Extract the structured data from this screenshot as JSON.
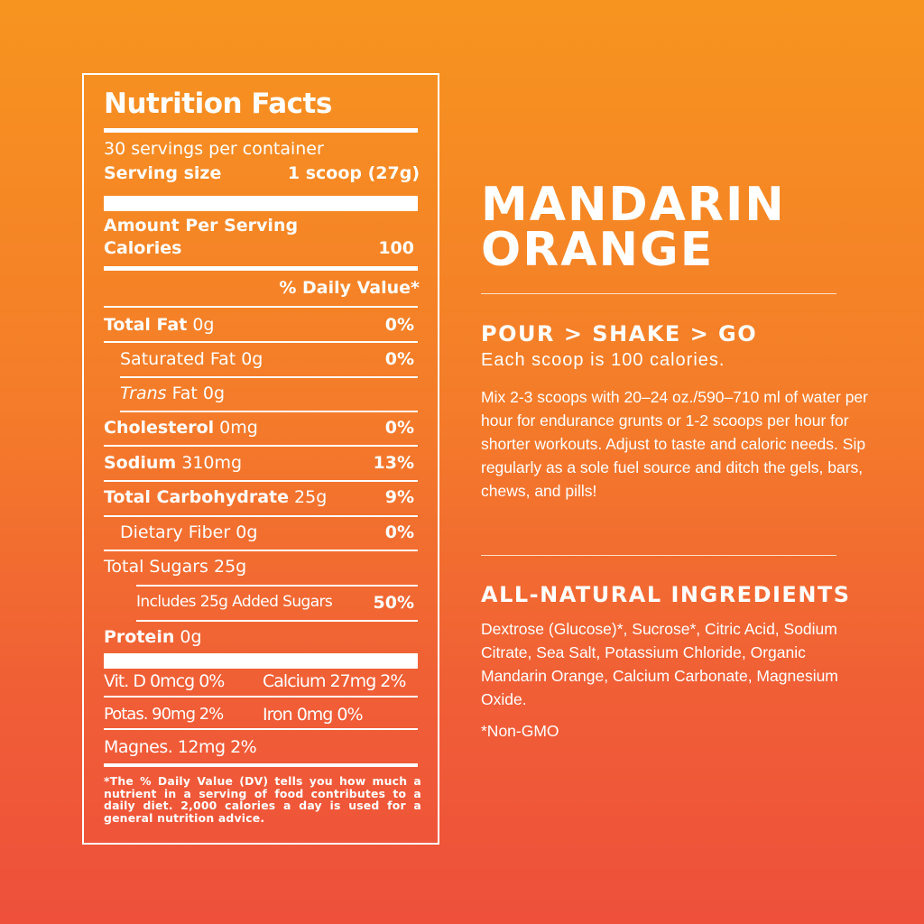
{
  "label": {
    "title": "Nutrition Facts",
    "servings": "30 servings per container",
    "serving_size_label": "Serving size",
    "serving_size_value": "1 scoop (27g)",
    "amount_per_serving": "Amount Per Serving",
    "calories_label": "Calories",
    "calories_value": "100",
    "dv_header": "% Daily Value*",
    "rows": [
      {
        "name": "Total Fat",
        "amount": " 0g",
        "dv": "0%"
      },
      {
        "name": "Saturated Fat",
        "amount": " 0g",
        "dv": "0%"
      },
      {
        "name": "Trans",
        "amount": " Fat 0g",
        "dv": ""
      },
      {
        "name": "Cholesterol",
        "amount": " 0mg",
        "dv": "0%"
      },
      {
        "name": "Sodium",
        "amount": " 310mg",
        "dv": "13%"
      },
      {
        "name": "Total Carbohydrate",
        "amount": " 25g",
        "dv": "9%"
      },
      {
        "name": "Dietary Fiber",
        "amount": " 0g",
        "dv": "0%"
      },
      {
        "name": "Total Sugars",
        "amount": " 25g",
        "dv": ""
      },
      {
        "name": "Includes 25g Added Sugars",
        "amount": "",
        "dv": "50%"
      },
      {
        "name": "Protein",
        "amount": " 0g",
        "dv": ""
      }
    ],
    "micros": {
      "vitd": "Vit. D 0mcg 0%",
      "calcium": "Calcium 27mg 2%",
      "potassium": "Potas.  90mg 2%",
      "iron": "Iron 0mg 0%",
      "magnesium": "Magnes. 12mg 2%"
    },
    "footnote": "*The % Daily Value (DV) tells you how much a nutrient in a serving of food contributes to a daily diet. 2,000 calories a day is used for a general nutrition advice."
  },
  "product": {
    "name_line1": "MANDARIN",
    "name_line2": "ORANGE",
    "steps": "POUR > SHAKE > GO",
    "scoop_note": "Each scoop is 100 calories.",
    "directions": "Mix 2-3 scoops with 20–24 oz./590–710 ml of water per hour for endurance grunts or 1-2 scoops per hour for shorter workouts. Adjust to taste and caloric needs. Sip regularly as a sole fuel source and ditch the gels, bars, chews, and pills!",
    "ingredients_heading": "ALL-NATURAL INGREDIENTS",
    "ingredients": "Dextrose (Glucose)*, Sucrose*, Citric Acid, Sodium Citrate, Sea Salt, Potassium Chloride, Organic Mandarin Orange, Calcium Carbonate, Magnesium Oxide.",
    "non_gmo": "*Non-GMO"
  },
  "colors": {
    "gradient_top": "#f7941f",
    "gradient_bottom": "#ee503b",
    "text": "#ffffff"
  }
}
